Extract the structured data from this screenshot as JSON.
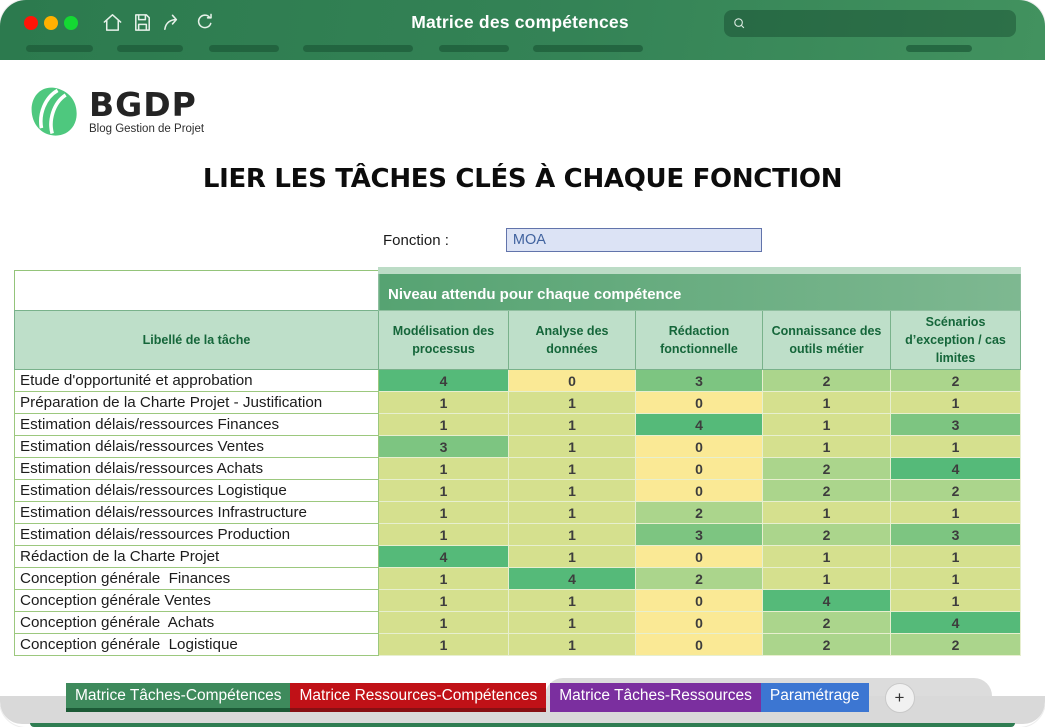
{
  "window": {
    "title": "Matrice des compétences",
    "traffic_lights": [
      "#ff1507",
      "#ffb000",
      "#14d833"
    ],
    "toolbar_icons": [
      "home-icon",
      "save-icon",
      "share-icon",
      "refresh-icon"
    ],
    "search": {
      "placeholder": ""
    }
  },
  "logo": {
    "text": "BGDP",
    "subtitle": "Blog Gestion de Projet",
    "color": "#4ec87e"
  },
  "main": {
    "title": "LIER LES TÂCHES CLÉS À CHAQUE FONCTION",
    "function_field": {
      "label": "Fonction :",
      "value": "MOA"
    }
  },
  "matrix": {
    "banner": "Niveau attendu pour chaque compétence",
    "row_header": "Libellé de la tâche",
    "columns": [
      "Modélisation des processus",
      "Analyse des données",
      "Rédaction fonctionnelle",
      "Connaissance des outils métier",
      "Scénarios d’exception / cas limites"
    ],
    "rows": [
      {
        "label": "Etude d'opportunité et approbation",
        "values": [
          4,
          0,
          3,
          2,
          2
        ]
      },
      {
        "label": "Préparation de la Charte Projet - Justification",
        "values": [
          1,
          1,
          0,
          1,
          1
        ]
      },
      {
        "label": "Estimation délais/ressources Finances",
        "values": [
          1,
          1,
          4,
          1,
          3
        ]
      },
      {
        "label": "Estimation délais/ressources Ventes",
        "values": [
          3,
          1,
          0,
          1,
          1
        ]
      },
      {
        "label": "Estimation délais/ressources Achats",
        "values": [
          1,
          1,
          0,
          2,
          4
        ]
      },
      {
        "label": "Estimation délais/ressources Logistique",
        "values": [
          1,
          1,
          0,
          2,
          2
        ]
      },
      {
        "label": "Estimation délais/ressources Infrastructure",
        "values": [
          1,
          1,
          2,
          1,
          1
        ]
      },
      {
        "label": "Estimation délais/ressources Production",
        "values": [
          1,
          1,
          3,
          2,
          3
        ]
      },
      {
        "label": "Rédaction de la Charte Projet",
        "values": [
          4,
          1,
          0,
          1,
          1
        ]
      },
      {
        "label": "Conception générale  Finances",
        "values": [
          1,
          4,
          2,
          1,
          1
        ]
      },
      {
        "label": "Conception générale Ventes",
        "values": [
          1,
          1,
          0,
          4,
          1
        ]
      },
      {
        "label": "Conception générale  Achats",
        "values": [
          1,
          1,
          0,
          2,
          4
        ]
      },
      {
        "label": "Conception générale  Logistique",
        "values": [
          1,
          1,
          0,
          2,
          2
        ]
      }
    ],
    "value_colors": {
      "0": "#fae995",
      "1": "#d5e08e",
      "2": "#abd58c",
      "3": "#7dc581",
      "4": "#55ba79"
    }
  },
  "sheet_tabs": [
    {
      "id": "matrice-taches-competences",
      "label": "Matrice Tâches-Compétences",
      "color": "#3e8a5c",
      "underline": "#1c5a36",
      "active": true
    },
    {
      "id": "matrice-ressources-competences",
      "label": "Matrice Ressources-Compétences",
      "color": "#c01117",
      "underline": "#871013",
      "active": false
    },
    {
      "id": "matrice-taches-ressources",
      "label": "Matrice Tâches-Ressources",
      "color": "#7b2f9f",
      "underline": "",
      "active": false
    },
    {
      "id": "parametrage",
      "label": "Paramétrage",
      "color": "#3c76d2",
      "underline": "",
      "active": false
    }
  ],
  "add_tab": {
    "label": "+"
  }
}
